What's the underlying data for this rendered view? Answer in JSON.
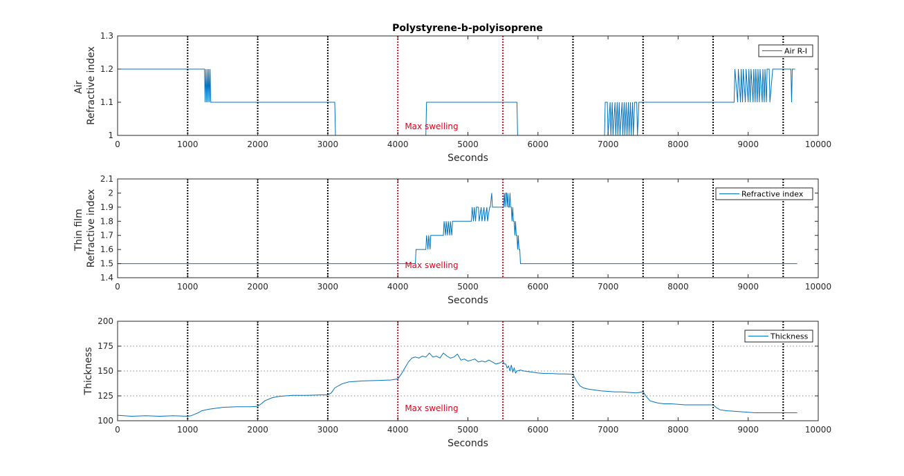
{
  "figure": {
    "title": "Polystyrene-b-polyisoprene"
  },
  "colors": {
    "series": "#0072bd",
    "red_marker": "#e0001a",
    "black_marker": "#000000",
    "grid": "#262626",
    "axes": "#262626"
  },
  "chart_data": [
    {
      "type": "line",
      "title": "Polystyrene-b-polyisoprene",
      "xlabel": "Seconds",
      "ylabel": [
        "Air",
        "Refractive index"
      ],
      "xlim": [
        0,
        10000
      ],
      "ylim": [
        1,
        1.3
      ],
      "xticks": [
        "0",
        "1000",
        "2000",
        "3000",
        "4000",
        "5000",
        "6000",
        "7000",
        "8000",
        "9000",
        "10000"
      ],
      "yticks": [
        "1",
        "1.1",
        "1.2",
        "1.3"
      ],
      "ytick_values": [
        1,
        1.1,
        1.2,
        1.3
      ],
      "grid": false,
      "legend": {
        "position": "top-right",
        "entries": [
          "Air R-I"
        ]
      },
      "black_markers_x": [
        1000,
        2000,
        3000,
        6500,
        7500,
        8500,
        9500
      ],
      "red_markers_x": [
        4000,
        5500
      ],
      "annotation": {
        "text": "Max swelling",
        "x": 4100,
        "y": 1.01
      },
      "series": [
        {
          "name": "Air R-I",
          "x": [
            0,
            1240,
            1250,
            1260,
            1270,
            1280,
            1290,
            1300,
            1310,
            1320,
            1330,
            1340,
            1350,
            3100,
            3110,
            4400,
            4410,
            5700,
            5710,
            6950,
            6960,
            6990,
            7000,
            7030,
            7040,
            7060,
            7070,
            7100,
            7110,
            7130,
            7140,
            7160,
            7170,
            7200,
            7210,
            7230,
            7240,
            7260,
            7270,
            7290,
            7300,
            7320,
            7330,
            7350,
            7360,
            7380,
            7390,
            7410,
            7420,
            7440,
            7450,
            7480,
            7490,
            8800,
            8810,
            8850,
            8860,
            8890,
            8900,
            8920,
            8930,
            8960,
            8970,
            9000,
            9010,
            9030,
            9040,
            9070,
            9080,
            9100,
            9110,
            9130,
            9140,
            9160,
            9170,
            9200,
            9210,
            9230,
            9240,
            9260,
            9270,
            9300,
            9310,
            9350,
            9400,
            9610,
            9620,
            9630,
            9640,
            9660,
            9670
          ],
          "y": [
            1.2,
            1.2,
            1.1,
            1.2,
            1.1,
            1.2,
            1.1,
            1.2,
            1.1,
            1.2,
            1.1,
            1.1,
            1.1,
            1.1,
            1,
            1,
            1.1,
            1.1,
            1,
            1,
            1.1,
            1.1,
            1,
            1.1,
            1,
            1.1,
            1,
            1.1,
            1,
            1.1,
            1,
            1.1,
            1,
            1.1,
            1,
            1.1,
            1,
            1.1,
            1,
            1.1,
            1,
            1.1,
            1,
            1.1,
            1,
            1.1,
            1.1,
            1.1,
            1,
            1.1,
            1.1,
            1.1,
            1.1,
            1.1,
            1.2,
            1.1,
            1.2,
            1.1,
            1.2,
            1.1,
            1.2,
            1.1,
            1.2,
            1.1,
            1.2,
            1.1,
            1.2,
            1.1,
            1.2,
            1.1,
            1.2,
            1.1,
            1.2,
            1.1,
            1.2,
            1.1,
            1.2,
            1.1,
            1.2,
            1.1,
            1.2,
            1.2,
            1.1,
            1.2,
            1.2,
            1.2,
            1.1,
            1.2,
            1.2,
            1.2,
            1.2
          ]
        }
      ]
    },
    {
      "type": "line",
      "title": "",
      "xlabel": "Seconds",
      "ylabel": [
        "Thin film",
        "Refractive index"
      ],
      "xlim": [
        0,
        10000
      ],
      "ylim": [
        1.4,
        2.1
      ],
      "xticks": [
        "0",
        "1000",
        "2000",
        "3000",
        "4000",
        "5000",
        "6000",
        "7000",
        "8000",
        "9000",
        "10000"
      ],
      "yticks": [
        "1.4",
        "1.5",
        "1.6",
        "1.7",
        "1.8",
        "1.9",
        "2",
        "2.1"
      ],
      "ytick_values": [
        1.4,
        1.5,
        1.6,
        1.7,
        1.8,
        1.9,
        2.0,
        2.1
      ],
      "grid": false,
      "legend": {
        "position": "top-right",
        "entries": [
          "Refractive index"
        ]
      },
      "black_markers_x": [
        1000,
        2000,
        3000,
        6500,
        7500,
        8500,
        9500
      ],
      "red_markers_x": [
        4000,
        5500
      ],
      "annotation": {
        "text": "Max swelling",
        "x": 4100,
        "y": 1.45
      },
      "series": [
        {
          "name": "Refractive index",
          "x": [
            0,
            4250,
            4260,
            4300,
            4310,
            4400,
            4410,
            4430,
            4440,
            4460,
            4470,
            4490,
            4500,
            4650,
            4660,
            4680,
            4690,
            4710,
            4720,
            4740,
            4750,
            4770,
            4780,
            4800,
            4810,
            4830,
            4840,
            4860,
            4870,
            4900,
            4910,
            5050,
            5060,
            5080,
            5090,
            5110,
            5120,
            5150,
            5160,
            5190,
            5200,
            5230,
            5240,
            5270,
            5280,
            5310,
            5320,
            5340,
            5350,
            5380,
            5390,
            5400,
            5410,
            5420,
            5500,
            5510,
            5520,
            5530,
            5540,
            5550,
            5560,
            5570,
            5580,
            5590,
            5600,
            5610,
            5620,
            5630,
            5640,
            5650,
            5660,
            5670,
            5680,
            5690,
            5700,
            5710,
            5720,
            5730,
            5740,
            5750,
            5770,
            5780,
            9700
          ],
          "y": [
            1.5,
            1.5,
            1.6,
            1.6,
            1.6,
            1.6,
            1.7,
            1.6,
            1.7,
            1.6,
            1.7,
            1.7,
            1.7,
            1.7,
            1.8,
            1.7,
            1.8,
            1.7,
            1.8,
            1.7,
            1.8,
            1.7,
            1.8,
            1.8,
            1.8,
            1.8,
            1.8,
            1.8,
            1.8,
            1.8,
            1.8,
            1.8,
            1.9,
            1.8,
            1.9,
            1.8,
            1.9,
            1.9,
            1.8,
            1.9,
            1.8,
            1.9,
            1.8,
            1.9,
            1.8,
            1.9,
            1.9,
            2.0,
            1.9,
            1.9,
            1.9,
            1.9,
            1.9,
            1.9,
            1.9,
            1.9,
            2.0,
            1.9,
            2.0,
            2.0,
            1.9,
            2.0,
            1.9,
            1.9,
            2.0,
            1.9,
            1.9,
            1.8,
            1.9,
            1.8,
            1.8,
            1.7,
            1.8,
            1.7,
            1.7,
            1.6,
            1.7,
            1.6,
            1.6,
            1.5,
            1.5,
            1.5,
            1.5
          ]
        }
      ]
    },
    {
      "type": "line",
      "title": "",
      "xlabel": "Seconds",
      "ylabel": [
        "Thickness"
      ],
      "xlim": [
        0,
        10000
      ],
      "ylim": [
        100,
        200
      ],
      "xticks": [
        "0",
        "1000",
        "2000",
        "3000",
        "4000",
        "5000",
        "6000",
        "7000",
        "8000",
        "9000",
        "10000"
      ],
      "yticks": [
        "100",
        "125",
        "150",
        "175",
        "200"
      ],
      "ytick_values": [
        100,
        125,
        150,
        175,
        200
      ],
      "grid": true,
      "legend": {
        "position": "top-right",
        "entries": [
          "Thickness"
        ]
      },
      "black_markers_x": [
        1000,
        2000,
        3000,
        6500,
        7500,
        8500,
        9500
      ],
      "red_markers_x": [
        4000,
        5500
      ],
      "annotation": {
        "text": "Max swelling",
        "x": 4100,
        "y": 107
      },
      "series": [
        {
          "name": "Thickness",
          "x": [
            0,
            200,
            400,
            600,
            800,
            1000,
            1050,
            1100,
            1150,
            1200,
            1300,
            1400,
            1500,
            1700,
            1900,
            2000,
            2050,
            2100,
            2200,
            2300,
            2500,
            2700,
            2900,
            3000,
            3050,
            3100,
            3200,
            3300,
            3500,
            3700,
            3900,
            4000,
            4050,
            4100,
            4150,
            4200,
            4250,
            4300,
            4350,
            4400,
            4450,
            4500,
            4550,
            4600,
            4650,
            4700,
            4750,
            4800,
            4850,
            4900,
            4950,
            5000,
            5050,
            5100,
            5150,
            5200,
            5250,
            5300,
            5350,
            5400,
            5450,
            5500,
            5520,
            5540,
            5560,
            5580,
            5600,
            5620,
            5640,
            5660,
            5680,
            5700,
            5750,
            5800,
            5900,
            6000,
            6100,
            6200,
            6300,
            6400,
            6500,
            6550,
            6600,
            6650,
            6700,
            6800,
            6900,
            7000,
            7100,
            7200,
            7300,
            7400,
            7500,
            7550,
            7600,
            7650,
            7700,
            7800,
            7900,
            8000,
            8100,
            8200,
            8300,
            8400,
            8500,
            8550,
            8600,
            8700,
            8800,
            8900,
            9000,
            9100,
            9200,
            9300,
            9400,
            9500,
            9550,
            9600,
            9700
          ],
          "y": [
            105.5,
            104.5,
            105,
            104.5,
            105,
            104.5,
            105,
            106.5,
            108,
            110,
            111.5,
            112.5,
            113.5,
            114,
            114,
            114.5,
            117,
            120,
            123,
            124.5,
            125.5,
            125.5,
            126,
            126,
            128,
            133,
            137,
            139,
            140,
            140.5,
            141,
            142,
            147,
            153,
            159,
            163,
            164,
            163,
            165,
            164,
            168,
            164,
            165,
            163,
            168,
            165,
            163,
            164,
            167,
            161,
            162,
            160,
            161,
            162,
            159,
            160,
            159,
            161,
            159,
            157,
            158,
            160,
            157,
            157,
            153,
            155,
            150,
            156,
            149,
            153,
            148,
            150,
            151,
            150,
            149,
            148,
            147.5,
            147.5,
            147,
            147,
            146.5,
            140,
            135,
            133,
            132,
            131,
            130,
            129.5,
            129,
            129,
            128.5,
            128,
            129,
            124,
            120,
            119,
            118,
            117,
            117,
            116.5,
            116,
            116,
            116,
            116,
            116,
            113,
            111,
            110,
            109.5,
            109,
            108.5,
            108,
            108,
            108,
            108,
            108,
            108,
            108,
            108
          ]
        }
      ]
    }
  ]
}
